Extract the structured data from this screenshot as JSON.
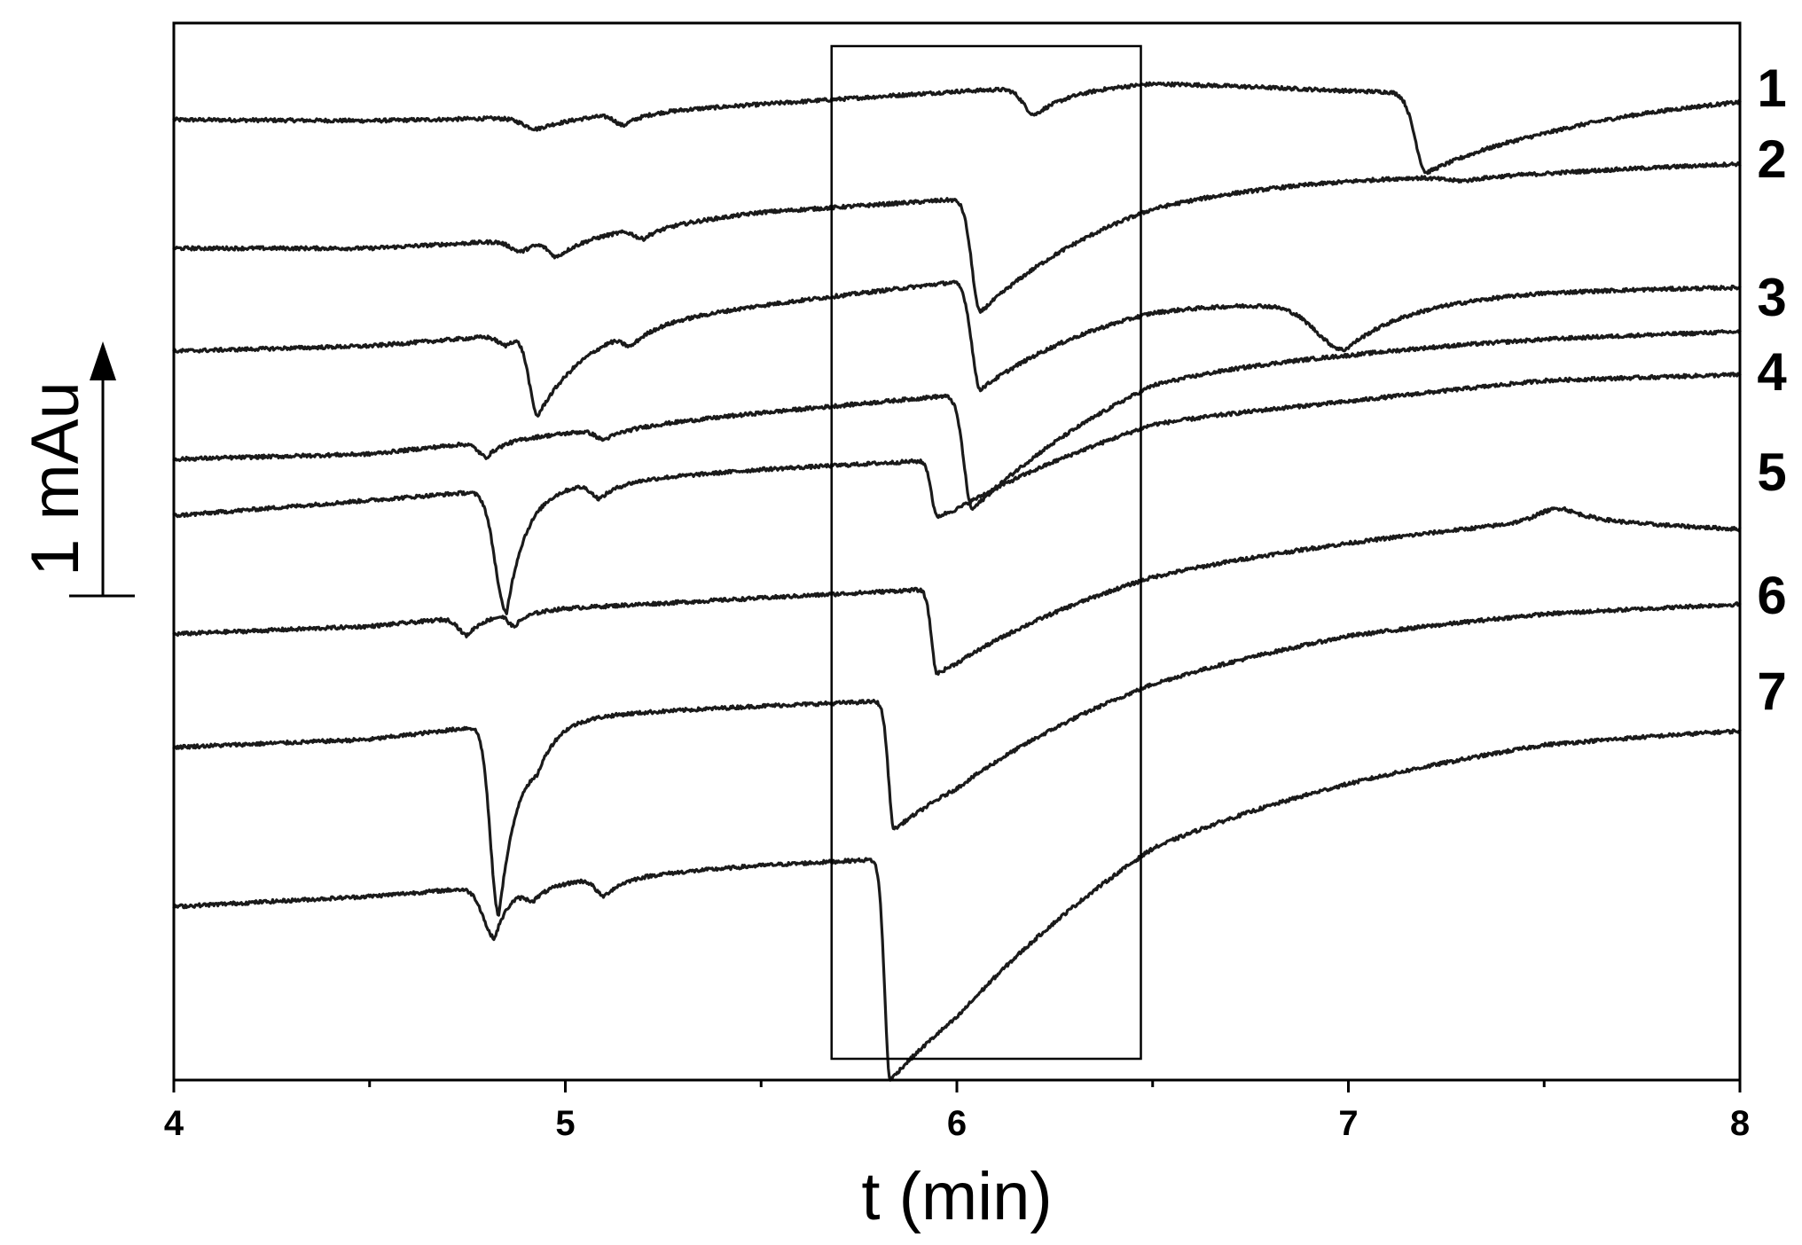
{
  "chart_data": {
    "type": "line",
    "title": "",
    "xlabel": "t (min)",
    "ylabel": "",
    "xlim": [
      4,
      8
    ],
    "x_ticks": [
      4,
      5,
      6,
      7,
      8
    ],
    "x_tick_labels": [
      "4",
      "5",
      "6",
      "7",
      "8"
    ],
    "x_minor_step": 0.5,
    "y_ticks_shown": false,
    "scale_bar": {
      "label": "1 mAu",
      "value": 1,
      "unit": "mAu"
    },
    "highlight_box": {
      "x": [
        5.68,
        6.47
      ],
      "y": [
        -17.7,
        1.1
      ]
    },
    "baseline_samples": [
      4.0,
      4.5,
      5.0,
      5.5,
      6.0,
      6.5,
      7.0,
      7.5,
      8.0
    ],
    "series": [
      {
        "name": "1",
        "base": [
          0.0,
          -0.02,
          0.05,
          0.3,
          0.55,
          0.72,
          0.56,
          0.46,
          0.55
        ],
        "peaks": [
          {
            "t": 4.93,
            "depth": 0.22,
            "rise": 0.05,
            "tail": 0.08
          },
          {
            "t": 5.15,
            "depth": 0.22,
            "rise": 0.03,
            "tail": 0.05
          },
          {
            "t": 6.2,
            "depth": 0.52,
            "rise": 0.04,
            "tail": 0.1
          },
          {
            "t": 7.2,
            "depth": 1.55,
            "rise": 0.04,
            "tail": 0.4
          }
        ]
      },
      {
        "name": "2",
        "base": [
          -2.5,
          -2.5,
          -2.3,
          -1.8,
          -1.55,
          -1.1,
          -1.05,
          -1.0,
          -0.85
        ],
        "peaks": [
          {
            "t": 4.89,
            "depth": 0.22,
            "rise": 0.04,
            "tail": 0.05
          },
          {
            "t": 4.98,
            "depth": 0.32,
            "rise": 0.03,
            "tail": 0.07
          },
          {
            "t": 5.2,
            "depth": 0.2,
            "rise": 0.03,
            "tail": 0.05
          },
          {
            "t": 6.06,
            "depth": 2.25,
            "rise": 0.03,
            "tail": 0.35
          },
          {
            "t": 7.3,
            "depth": 0.1,
            "rise": 0.08,
            "tail": 0.1
          }
        ]
      },
      {
        "name": "3",
        "base": [
          -4.5,
          -4.4,
          -4.1,
          -3.6,
          -3.15,
          -3.1,
          -3.45,
          -3.3,
          -3.25
        ],
        "peaks": [
          {
            "t": 4.85,
            "depth": 0.2,
            "rise": 0.03,
            "tail": 0.03
          },
          {
            "t": 4.93,
            "depth": 1.6,
            "rise": 0.03,
            "tail": 0.12
          },
          {
            "t": 5.17,
            "depth": 0.25,
            "rise": 0.03,
            "tail": 0.05
          },
          {
            "t": 6.06,
            "depth": 2.1,
            "rise": 0.03,
            "tail": 0.38
          },
          {
            "t": 6.99,
            "depth": 0.85,
            "rise": 0.1,
            "tail": 0.15
          }
        ]
      },
      {
        "name": "4",
        "base": [
          -6.6,
          -6.5,
          -6.1,
          -5.7,
          -5.35,
          -4.4,
          -4.35,
          -4.2,
          -4.1
        ],
        "peaks": [
          {
            "t": 4.8,
            "depth": 0.3,
            "rise": 0.03,
            "tail": 0.04
          },
          {
            "t": 5.1,
            "depth": 0.2,
            "rise": 0.03,
            "tail": 0.06
          },
          {
            "t": 6.04,
            "depth": 2.3,
            "rise": 0.03,
            "tail": 0.42
          }
        ]
      },
      {
        "name": "5",
        "base": [
          -7.7,
          -7.4,
          -7.1,
          -6.8,
          -6.6,
          -5.65,
          -5.4,
          -5.05,
          -4.95
        ],
        "peaks": [
          {
            "t": 4.85,
            "depth": 2.4,
            "rise": 0.04,
            "tail": 0.05
          },
          {
            "t": 5.09,
            "depth": 0.3,
            "rise": 0.03,
            "tail": 0.05
          },
          {
            "t": 5.95,
            "depth": 1.1,
            "rise": 0.02,
            "tail": 0.4
          }
        ]
      },
      {
        "name": "6",
        "base": [
          -10.0,
          -9.85,
          -9.5,
          -9.3,
          -9.1,
          -8.45,
          -8.1,
          -7.75,
          -7.95
        ],
        "peaks": [
          {
            "t": 4.75,
            "depth": 0.35,
            "rise": 0.03,
            "tail": 0.04
          },
          {
            "t": 4.87,
            "depth": 0.25,
            "rise": 0.02,
            "tail": 0.03
          },
          {
            "t": 5.95,
            "depth": 1.65,
            "rise": 0.02,
            "tail": 0.42
          },
          {
            "t": 7.55,
            "depth": -0.25,
            "rise": 0.08,
            "tail": 0.08
          }
        ]
      },
      {
        "name": "7",
        "base": [
          -12.2,
          -12.05,
          -11.6,
          -11.4,
          -11.25,
          -10.4,
          -9.85,
          -9.55,
          -9.4
        ],
        "peaks": [
          {
            "t": 4.83,
            "depth": 3.7,
            "rise": 0.03,
            "tail": 0.06
          },
          {
            "t": 4.93,
            "depth": 0.35,
            "rise": 0.03,
            "tail": 0.04
          },
          {
            "t": 5.84,
            "depth": 2.5,
            "rise": 0.02,
            "tail": 0.45
          }
        ]
      },
      {
        "name": "",
        "base": [
          -15.3,
          -15.1,
          -14.8,
          -14.5,
          -14.3,
          -12.9,
          -12.4,
          -11.95,
          -11.8
        ],
        "peaks": [
          {
            "t": 4.82,
            "depth": 1.0,
            "rise": 0.04,
            "tail": 0.04
          },
          {
            "t": 4.92,
            "depth": 0.25,
            "rise": 0.03,
            "tail": 0.05
          },
          {
            "t": 5.1,
            "depth": 0.35,
            "rise": 0.03,
            "tail": 0.05
          },
          {
            "t": 5.83,
            "depth": 4.3,
            "rise": 0.02,
            "tail": 0.55
          }
        ]
      }
    ]
  }
}
